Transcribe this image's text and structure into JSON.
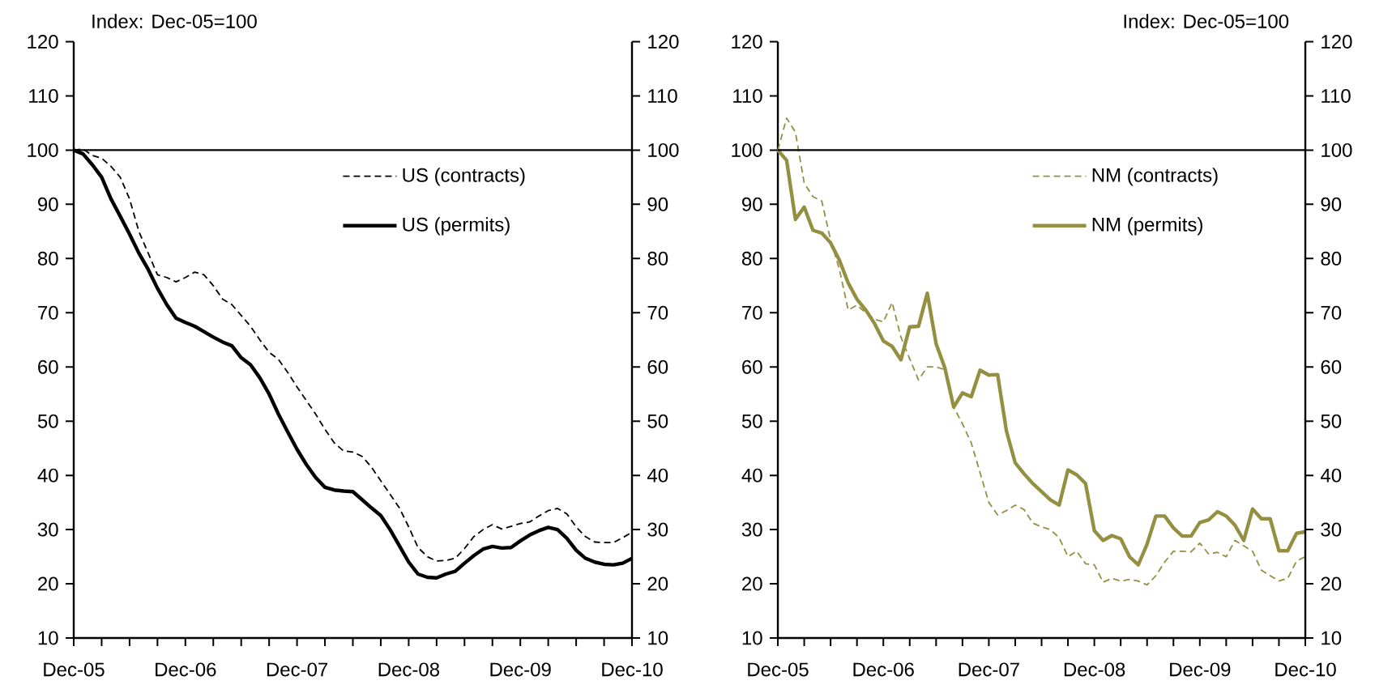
{
  "chart_data": [
    {
      "type": "line",
      "annotations": [
        "Index: Dec-05=100"
      ],
      "x": [
        "2005-12",
        "2006-01",
        "2006-02",
        "2006-03",
        "2006-04",
        "2006-05",
        "2006-06",
        "2006-07",
        "2006-08",
        "2006-09",
        "2006-10",
        "2006-11",
        "2006-12",
        "2007-01",
        "2007-02",
        "2007-03",
        "2007-04",
        "2007-05",
        "2007-06",
        "2007-07",
        "2007-08",
        "2007-09",
        "2007-10",
        "2007-11",
        "2007-12",
        "2008-01",
        "2008-02",
        "2008-03",
        "2008-04",
        "2008-05",
        "2008-06",
        "2008-07",
        "2008-08",
        "2008-09",
        "2008-10",
        "2008-11",
        "2008-12",
        "2009-01",
        "2009-02",
        "2009-03",
        "2009-04",
        "2009-05",
        "2009-06",
        "2009-07",
        "2009-08",
        "2009-09",
        "2009-10",
        "2009-11",
        "2009-12",
        "2010-01",
        "2010-02",
        "2010-03",
        "2010-04",
        "2010-05",
        "2010-06",
        "2010-07",
        "2010-08",
        "2010-09",
        "2010-10",
        "2010-11",
        "2010-12"
      ],
      "series": [
        {
          "name": "US (contracts)",
          "color": "#000000",
          "line_style": "dashed",
          "values": [
            100,
            100.2,
            99,
            98.5,
            97,
            95,
            91,
            85,
            81,
            77,
            76.5,
            75.7,
            76.5,
            77.5,
            77,
            75,
            72.5,
            71.5,
            69.5,
            67.5,
            65,
            62.7,
            61.4,
            59,
            56.3,
            53.8,
            51.3,
            48.5,
            46,
            44.5,
            44.3,
            43.5,
            41.5,
            39,
            36.5,
            34,
            30.5,
            26.7,
            25,
            24.2,
            24.3,
            24.7,
            26.5,
            28.7,
            30,
            30.9,
            30.1,
            30.6,
            31.1,
            31.4,
            32.5,
            33.5,
            33.9,
            32.9,
            30.5,
            28.7,
            27.7,
            27.6,
            27.6,
            28.5,
            29.5
          ]
        },
        {
          "name": "US (permits)",
          "color": "#000000",
          "line_style": "solid",
          "values": [
            100,
            99.3,
            97.3,
            95,
            91,
            87.8,
            84.5,
            81,
            78,
            74.5,
            71.5,
            69,
            68.2,
            67.5,
            66.5,
            65.5,
            64.6,
            63.9,
            61.7,
            60.4,
            58,
            55,
            51.3,
            48,
            44.8,
            42,
            39.6,
            37.8,
            37.3,
            37.1,
            37,
            35.5,
            34,
            32.6,
            30,
            27,
            24,
            21.8,
            21.2,
            21.1,
            21.8,
            22.3,
            23.8,
            25.2,
            26.4,
            26.9,
            26.6,
            26.7,
            27.9,
            29,
            29.8,
            30.4,
            30,
            28.4,
            26.2,
            24.7,
            24,
            23.6,
            23.5,
            23.8,
            24.7
          ]
        }
      ],
      "xlim": [
        "2005-12",
        "2010-12"
      ],
      "xticks": [
        {
          "value": "2005-12",
          "label": "Dec-05"
        },
        {
          "value": "2006-03",
          "label": null
        },
        {
          "value": "2006-06",
          "label": null
        },
        {
          "value": "2006-09",
          "label": null
        },
        {
          "value": "2006-12",
          "label": "Dec-06"
        },
        {
          "value": "2007-03",
          "label": null
        },
        {
          "value": "2007-06",
          "label": null
        },
        {
          "value": "2007-09",
          "label": null
        },
        {
          "value": "2007-12",
          "label": "Dec-07"
        },
        {
          "value": "2008-03",
          "label": null
        },
        {
          "value": "2008-06",
          "label": null
        },
        {
          "value": "2008-09",
          "label": null
        },
        {
          "value": "2008-12",
          "label": "Dec-08"
        },
        {
          "value": "2009-03",
          "label": null
        },
        {
          "value": "2009-06",
          "label": null
        },
        {
          "value": "2009-09",
          "label": null
        },
        {
          "value": "2009-12",
          "label": "Dec-09"
        },
        {
          "value": "2010-03",
          "label": null
        },
        {
          "value": "2010-06",
          "label": null
        },
        {
          "value": "2010-09",
          "label": null
        },
        {
          "value": "2010-12",
          "label": "Dec-10"
        }
      ],
      "ylim": [
        10,
        120
      ],
      "yticks": [
        10,
        20,
        30,
        40,
        50,
        60,
        70,
        80,
        90,
        100,
        110,
        120
      ],
      "y2lim": [
        10,
        120
      ],
      "y2ticks": [
        10,
        20,
        30,
        40,
        50,
        60,
        70,
        80,
        90,
        100,
        110,
        120
      ],
      "ref_lines": [
        {
          "axis": "y",
          "value": 100,
          "color": "#000000"
        }
      ],
      "legend": "right"
    },
    {
      "type": "line",
      "annotations": [
        "Index: Dec-05=100"
      ],
      "x": [
        "2005-12",
        "2006-01",
        "2006-02",
        "2006-03",
        "2006-04",
        "2006-05",
        "2006-06",
        "2006-07",
        "2006-08",
        "2006-09",
        "2006-10",
        "2006-11",
        "2006-12",
        "2007-01",
        "2007-02",
        "2007-03",
        "2007-04",
        "2007-05",
        "2007-06",
        "2007-07",
        "2007-08",
        "2007-09",
        "2007-10",
        "2007-11",
        "2007-12",
        "2008-01",
        "2008-02",
        "2008-03",
        "2008-04",
        "2008-05",
        "2008-06",
        "2008-07",
        "2008-08",
        "2008-09",
        "2008-10",
        "2008-11",
        "2008-12",
        "2009-01",
        "2009-02",
        "2009-03",
        "2009-04",
        "2009-05",
        "2009-06",
        "2009-07",
        "2009-08",
        "2009-09",
        "2009-10",
        "2009-11",
        "2009-12",
        "2010-01",
        "2010-02",
        "2010-03",
        "2010-04",
        "2010-05",
        "2010-06",
        "2010-07",
        "2010-08",
        "2010-09",
        "2010-10",
        "2010-11",
        "2010-12"
      ],
      "series": [
        {
          "name": "NM (contracts)",
          "color": "#948f41",
          "line_style": "dashed",
          "values": [
            100,
            105.9,
            103.3,
            93.9,
            91.4,
            90.6,
            83.4,
            78,
            70.5,
            71.4,
            70,
            68.8,
            68.3,
            71.9,
            65.5,
            61.5,
            57.6,
            60,
            60,
            59.5,
            52.6,
            49.5,
            46,
            40.5,
            35,
            32.7,
            33.5,
            34.5,
            33.7,
            31.2,
            30.5,
            30,
            28.5,
            25,
            26,
            23.7,
            23.5,
            20.3,
            21,
            20.5,
            20.8,
            20.5,
            19.8,
            21.5,
            24,
            26,
            26,
            25.9,
            27.5,
            25.5,
            25.8,
            25,
            28,
            27,
            26,
            22.5,
            21.5,
            20.5,
            21,
            24.2,
            25
          ]
        },
        {
          "name": "NM (permits)",
          "color": "#948f41",
          "line_style": "solid",
          "values": [
            100,
            98.1,
            87.2,
            89.5,
            85.2,
            84.7,
            82.9,
            79.7,
            75.5,
            72.5,
            70.5,
            68,
            64.8,
            63.8,
            61.3,
            67.4,
            67.5,
            73.6,
            64.3,
            59.8,
            52.6,
            55.2,
            54.5,
            59.4,
            58.5,
            58.6,
            48.2,
            42.3,
            40.3,
            38.5,
            37,
            35.5,
            34.5,
            41,
            40.1,
            38.5,
            29.8,
            28,
            28.9,
            28.3,
            25,
            23.5,
            27.3,
            32.5,
            32.5,
            30.3,
            28.8,
            28.8,
            31.3,
            31.8,
            33.3,
            32.5,
            30.8,
            28,
            33.8,
            32,
            32,
            26.1,
            26.1,
            29.3,
            29.6
          ]
        }
      ],
      "xlim": [
        "2005-12",
        "2010-12"
      ],
      "xticks": [
        {
          "value": "2005-12",
          "label": "Dec-05"
        },
        {
          "value": "2006-03",
          "label": null
        },
        {
          "value": "2006-06",
          "label": null
        },
        {
          "value": "2006-09",
          "label": null
        },
        {
          "value": "2006-12",
          "label": "Dec-06"
        },
        {
          "value": "2007-03",
          "label": null
        },
        {
          "value": "2007-06",
          "label": null
        },
        {
          "value": "2007-09",
          "label": null
        },
        {
          "value": "2007-12",
          "label": "Dec-07"
        },
        {
          "value": "2008-03",
          "label": null
        },
        {
          "value": "2008-06",
          "label": null
        },
        {
          "value": "2008-09",
          "label": null
        },
        {
          "value": "2008-12",
          "label": "Dec-08"
        },
        {
          "value": "2009-03",
          "label": null
        },
        {
          "value": "2009-06",
          "label": null
        },
        {
          "value": "2009-09",
          "label": null
        },
        {
          "value": "2009-12",
          "label": "Dec-09"
        },
        {
          "value": "2010-03",
          "label": null
        },
        {
          "value": "2010-06",
          "label": null
        },
        {
          "value": "2010-09",
          "label": null
        },
        {
          "value": "2010-12",
          "label": "Dec-10"
        }
      ],
      "ylim": [
        10,
        120
      ],
      "yticks": [
        10,
        20,
        30,
        40,
        50,
        60,
        70,
        80,
        90,
        100,
        110,
        120
      ],
      "y2lim": [
        10,
        120
      ],
      "y2ticks": [
        10,
        20,
        30,
        40,
        50,
        60,
        70,
        80,
        90,
        100,
        110,
        120
      ],
      "ref_lines": [
        {
          "axis": "y",
          "value": 100,
          "color": "#000000"
        }
      ],
      "legend": "right"
    }
  ]
}
